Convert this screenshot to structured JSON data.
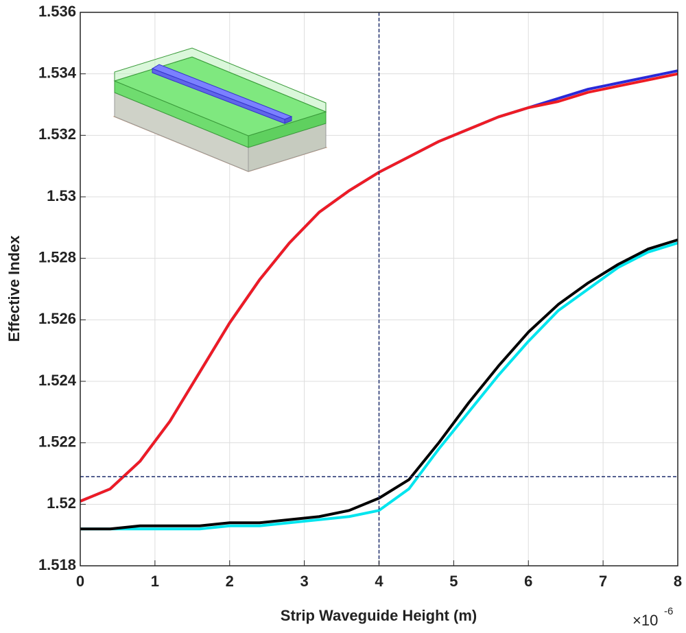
{
  "chart_data": {
    "type": "line",
    "x_label": "Strip Waveguide Height (m)",
    "y_label": "Effective Index",
    "x_multiplier_base": "×10",
    "x_multiplier_exponent": "-6",
    "x": [
      0,
      0.4,
      0.8,
      1.2,
      1.6,
      2.0,
      2.4,
      2.8,
      3.2,
      3.6,
      4.0,
      4.4,
      4.8,
      5.2,
      5.6,
      6.0,
      6.4,
      6.8,
      7.2,
      7.6,
      8.0
    ],
    "series": [
      {
        "color": "#2a2ad8",
        "values": [
          1.5201,
          1.5205,
          1.5214,
          1.5227,
          1.5243,
          1.5259,
          1.5273,
          1.5285,
          1.5295,
          1.5302,
          1.5308,
          1.5313,
          1.5318,
          1.5322,
          1.5326,
          1.5329,
          1.5332,
          1.5335,
          1.5337,
          1.5339,
          1.5341
        ]
      },
      {
        "color": "#ee1c24",
        "values": [
          1.5201,
          1.5205,
          1.5214,
          1.5227,
          1.5243,
          1.5259,
          1.5273,
          1.5285,
          1.5295,
          1.5302,
          1.5308,
          1.5313,
          1.5318,
          1.5322,
          1.5326,
          1.5329,
          1.5331,
          1.5334,
          1.5336,
          1.5338,
          1.534
        ]
      },
      {
        "color": "#00e5ee",
        "values": [
          1.5192,
          1.5192,
          1.5192,
          1.5192,
          1.5192,
          1.5193,
          1.5193,
          1.5194,
          1.5195,
          1.5196,
          1.5198,
          1.5205,
          1.5218,
          1.523,
          1.5242,
          1.5253,
          1.5263,
          1.527,
          1.5277,
          1.5282,
          1.5285
        ]
      },
      {
        "color": "#000000",
        "values": [
          1.5192,
          1.5192,
          1.5193,
          1.5193,
          1.5193,
          1.5194,
          1.5194,
          1.5195,
          1.5196,
          1.5198,
          1.5202,
          1.5208,
          1.522,
          1.5233,
          1.5245,
          1.5256,
          1.5265,
          1.5272,
          1.5278,
          1.5283,
          1.5286
        ]
      }
    ],
    "reference_x": 4,
    "reference_y": 1.5209,
    "xlim": [
      0,
      8
    ],
    "xticks": [
      0,
      1,
      2,
      3,
      4,
      5,
      6,
      7,
      8
    ],
    "ylim": [
      1.518,
      1.536
    ],
    "yticks": [
      1.518,
      1.52,
      1.522,
      1.524,
      1.526,
      1.528,
      1.53,
      1.532,
      1.534,
      1.536
    ],
    "grid": true
  }
}
